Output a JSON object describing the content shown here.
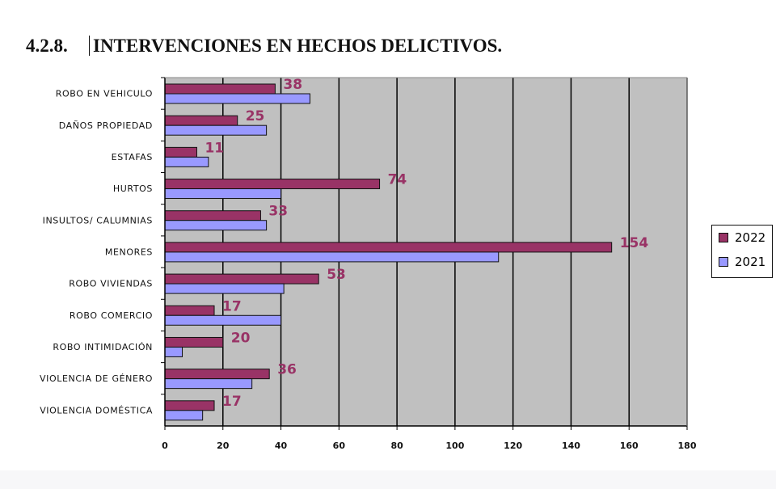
{
  "heading": {
    "number": "4.2.8.",
    "text": "INTERVENCIONES EN HECHOS DELICTIVOS."
  },
  "chart_data": {
    "type": "bar",
    "orientation": "horizontal",
    "categories": [
      "ROBO EN VEHICULO",
      "DAÑOS PROPIEDAD",
      "ESTAFAS",
      "HURTOS",
      "INSULTOS/ CALUMNIAS",
      "MENORES",
      "ROBO VIVIENDAS",
      "ROBO COMERCIO",
      "ROBO INTIMIDACIÓN",
      "VIOLENCIA DE GÉNERO",
      "VIOLENCIA DOMÉSTICA"
    ],
    "series": [
      {
        "name": "2022",
        "color": "#993366",
        "values": [
          38,
          25,
          11,
          74,
          33,
          154,
          53,
          17,
          20,
          36,
          17
        ],
        "data_labels": true
      },
      {
        "name": "2021",
        "color": "#9999FF",
        "values": [
          50,
          35,
          15,
          40,
          35,
          115,
          41,
          40,
          6,
          30,
          13
        ],
        "data_labels": false
      }
    ],
    "xlim": [
      0,
      180
    ],
    "xticks": [
      "0",
      "20",
      "40",
      "60",
      "80",
      "100",
      "120",
      "140",
      "160",
      "180"
    ],
    "grid": true,
    "plot_background": "#C0C0C0",
    "label_color": "#993366",
    "legend": "right"
  }
}
